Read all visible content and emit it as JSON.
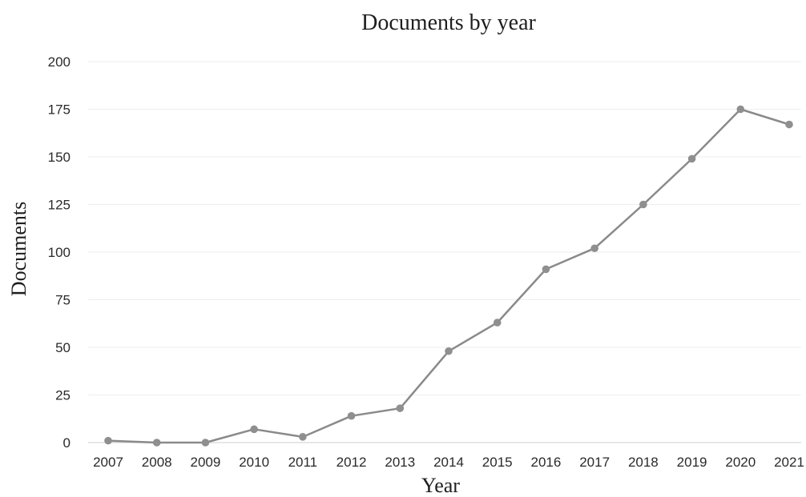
{
  "chart_data": {
    "type": "line",
    "title": "Documents by year",
    "xlabel": "Year",
    "ylabel": "Documents",
    "categories": [
      "2007",
      "2008",
      "2009",
      "2010",
      "2011",
      "2012",
      "2013",
      "2014",
      "2015",
      "2016",
      "2017",
      "2018",
      "2019",
      "2020",
      "2021"
    ],
    "series": [
      {
        "values": [
          1,
          0,
          0,
          7,
          3,
          14,
          18,
          48,
          63,
          91,
          102,
          125,
          149,
          175,
          167
        ]
      }
    ],
    "ylim": [
      0,
      200
    ],
    "yticks": [
      0,
      25,
      50,
      75,
      100,
      125,
      150,
      175,
      200
    ],
    "grid": true,
    "legend": "none"
  },
  "colors": {
    "series": "#8a8a8a",
    "marker": "#8f8f8f"
  }
}
